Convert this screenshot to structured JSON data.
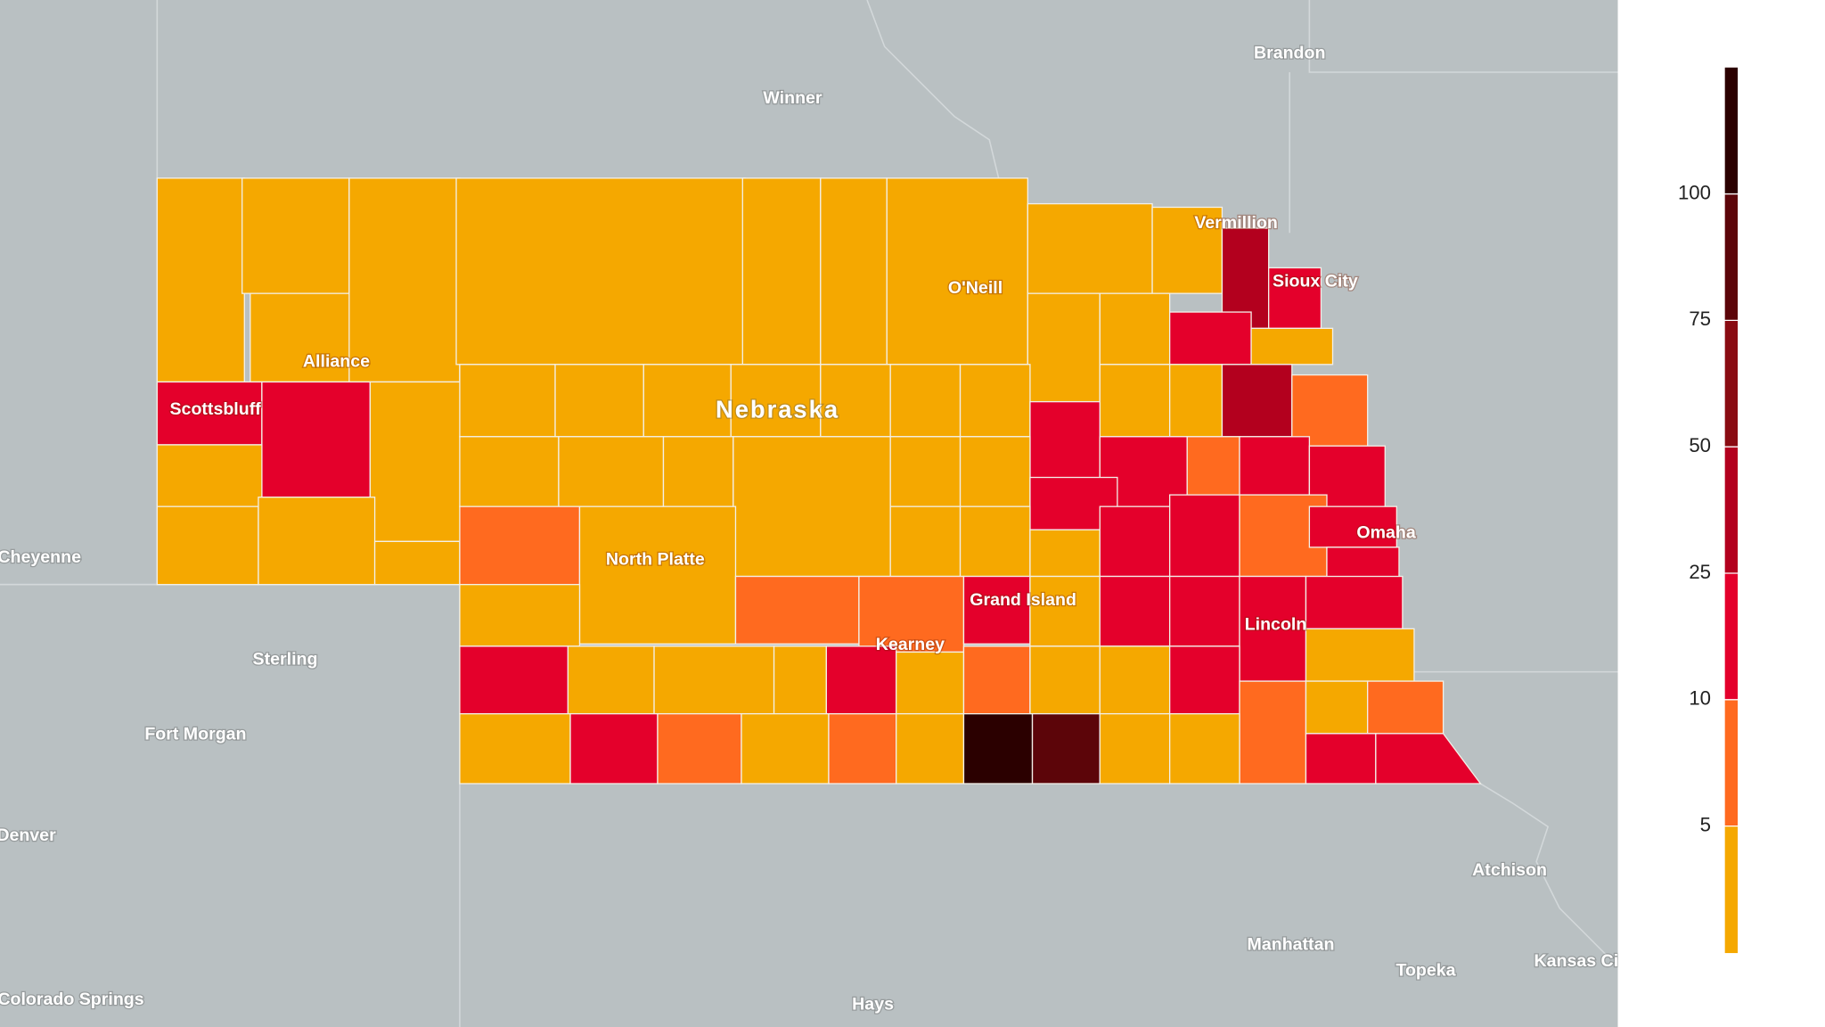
{
  "state": "Nebraska",
  "places": [
    "Brandon",
    "Winner",
    "Vermillion",
    "Sioux City",
    "O'Neill",
    "Alliance",
    "Scottsbluff",
    "Cheyenne",
    "North Platte",
    "Omaha",
    "Grand Island",
    "Kearney",
    "Lincoln",
    "Sterling",
    "Fort Morgan",
    "Denver",
    "Atchison",
    "Manhattan",
    "Topeka",
    "Kansas City",
    "Hays",
    "Colorado Springs"
  ],
  "legend": {
    "ticks": [
      5,
      10,
      25,
      50,
      75,
      100
    ],
    "colors": [
      "#f5a800",
      "#ff6a1f",
      "#e4002b",
      "#b3001e",
      "#8a0b12",
      "#5c0509",
      "#2b0000"
    ]
  }
}
